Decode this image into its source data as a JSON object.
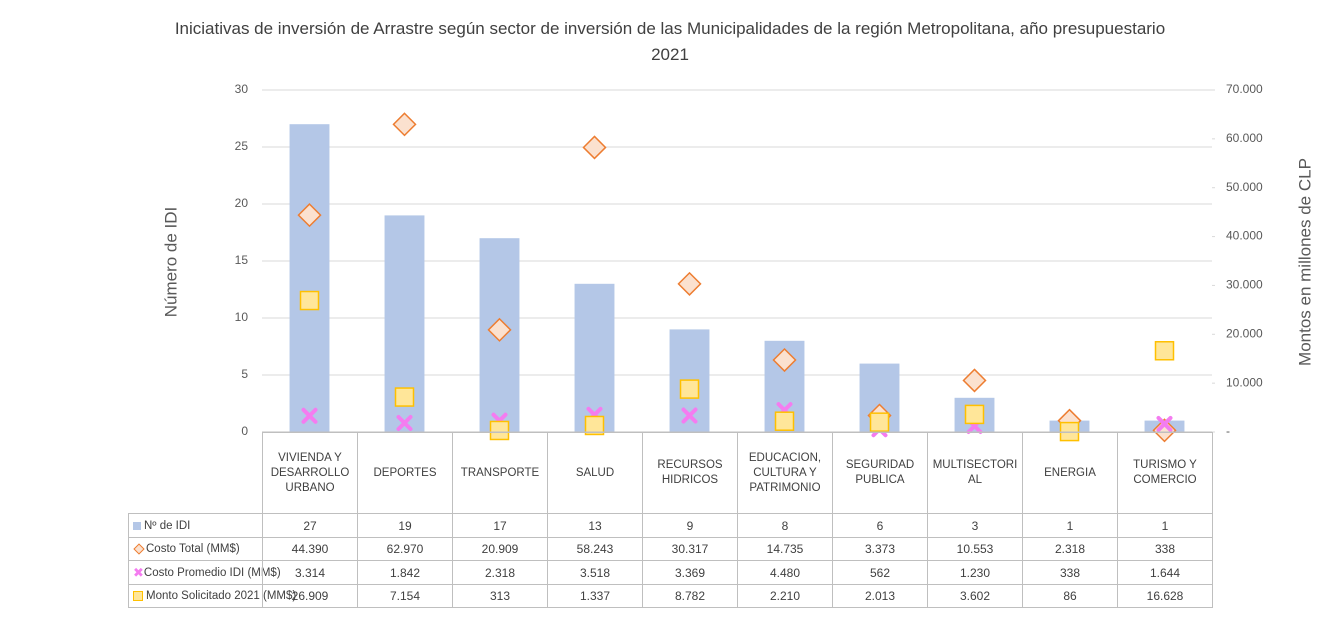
{
  "chart_data": {
    "type": "bar",
    "title": "Iniciativas de inversión de Arrastre según sector de inversión de las Municipalidades de la región Metropolitana, año presupuestario 2021",
    "y_label": "Número de IDI",
    "y2_label": "Montos en millones de CLP",
    "categories": [
      "VIVIENDA Y DESARROLLO URBANO",
      "DEPORTES",
      "TRANSPORTE",
      "SALUD",
      "RECURSOS HIDRICOS",
      "EDUCACION, CULTURA Y PATRIMONIO",
      "SEGURIDAD PUBLICA",
      "MULTISECTORIAL",
      "ENERGIA",
      "TURISMO Y COMERCIO"
    ],
    "series": [
      {
        "name": "Nº de IDI",
        "kind": "bar",
        "color": "#b4c7e7",
        "values": [
          27,
          19,
          17,
          13,
          9,
          8,
          6,
          3,
          1,
          1
        ]
      },
      {
        "name": "Costo Total (MM$)",
        "kind": "marker",
        "marker": "diamond",
        "color": "#ed7d31",
        "axis": "y2",
        "values": [
          44390,
          62970,
          20909,
          58243,
          30317,
          14735,
          3373,
          10553,
          2318,
          338
        ],
        "value_labels": [
          "44.390",
          "62.970",
          "20.909",
          "58.243",
          "30.317",
          "14.735",
          "3.373",
          "10.553",
          "2.318",
          "338"
        ]
      },
      {
        "name": "Costo Promedio IDI (MM$)",
        "kind": "marker",
        "marker": "x",
        "color": "#f47cf0",
        "axis": "y2",
        "values": [
          3314,
          1842,
          2318,
          3518,
          3369,
          4480,
          562,
          1230,
          338,
          1644
        ],
        "value_labels": [
          "3.314",
          "1.842",
          "2.318",
          "3.518",
          "3.369",
          "4.480",
          "562",
          "1.230",
          "338",
          "1.644"
        ]
      },
      {
        "name": "Monto Solicitado 2021 (MM$)",
        "kind": "marker",
        "marker": "square",
        "color": "#ffc000",
        "axis": "y2",
        "values": [
          26909,
          7154,
          313,
          1337,
          8782,
          2210,
          2013,
          3602,
          86,
          16628
        ],
        "value_labels": [
          "26.909",
          "7.154",
          "313",
          "1.337",
          "8.782",
          "2.210",
          "2.013",
          "3.602",
          "86",
          "16.628"
        ]
      }
    ],
    "ylim": [
      0,
      30
    ],
    "yticks": [
      0,
      5,
      10,
      15,
      20,
      25,
      30
    ],
    "y2lim": [
      0,
      70000
    ],
    "y2ticks": [
      {
        "value": 0,
        "label": "-"
      },
      {
        "value": 10000,
        "label": "10.000"
      },
      {
        "value": 20000,
        "label": "20.000"
      },
      {
        "value": 30000,
        "label": "30.000"
      },
      {
        "value": 40000,
        "label": "40.000"
      },
      {
        "value": 50000,
        "label": "50.000"
      },
      {
        "value": 60000,
        "label": "60.000"
      },
      {
        "value": 70000,
        "label": "70.000"
      }
    ],
    "grid": true
  }
}
